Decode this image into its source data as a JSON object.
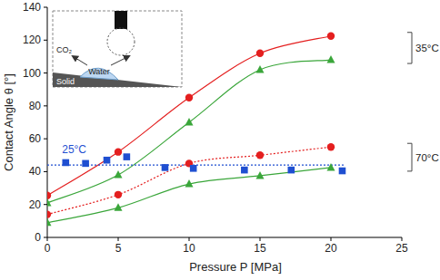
{
  "chart_data": {
    "type": "scatter",
    "x_label": "Pressure P [MPa]",
    "y_label": "Contact Angle θ [°]",
    "xlim": [
      0,
      25
    ],
    "xticks": [
      0,
      5,
      10,
      15,
      20,
      25
    ],
    "ylim": [
      0,
      140
    ],
    "yticks": [
      0,
      20,
      40,
      60,
      80,
      100,
      120,
      140
    ],
    "grid": false,
    "series": [
      {
        "x": [
          0,
          5,
          10,
          15,
          20
        ],
        "values": [
          25.5,
          52,
          85,
          112,
          122.5
        ],
        "color": "#e41f1f",
        "marker": "circle",
        "line_style": "solid"
      },
      {
        "x": [
          0,
          5,
          10,
          15,
          20
        ],
        "values": [
          21,
          38,
          70,
          102,
          108
        ],
        "color": "#3aa63a",
        "marker": "triangle",
        "line_style": "solid"
      },
      {
        "x": [
          0,
          5,
          10,
          15,
          20
        ],
        "values": [
          14,
          26,
          45,
          50,
          55
        ],
        "color": "#e41f1f",
        "marker": "circle",
        "line_style": "dotted"
      },
      {
        "x": [
          0,
          5,
          10,
          15,
          20
        ],
        "values": [
          9,
          18,
          32.5,
          37.5,
          42.5
        ],
        "color": "#3aa63a",
        "marker": "triangle",
        "line_style": "solid"
      },
      {
        "x": [
          1.3,
          2.7,
          4.2,
          5.6,
          8.3,
          10.3,
          13.9,
          17.2,
          20.8
        ],
        "values": [
          45.5,
          45,
          47,
          49,
          42.5,
          42,
          41,
          41,
          40.5
        ],
        "color": "#1f4fd1",
        "marker": "square",
        "line_style": "none"
      },
      {
        "x": [
          0,
          21
        ],
        "values": [
          44,
          44
        ],
        "color": "#1f4fd1",
        "marker": "none",
        "line_style": "dotted"
      }
    ],
    "annotations": [
      "35°C",
      "70°C",
      "25°C",
      "CO₂",
      "Water",
      "Solid"
    ]
  }
}
